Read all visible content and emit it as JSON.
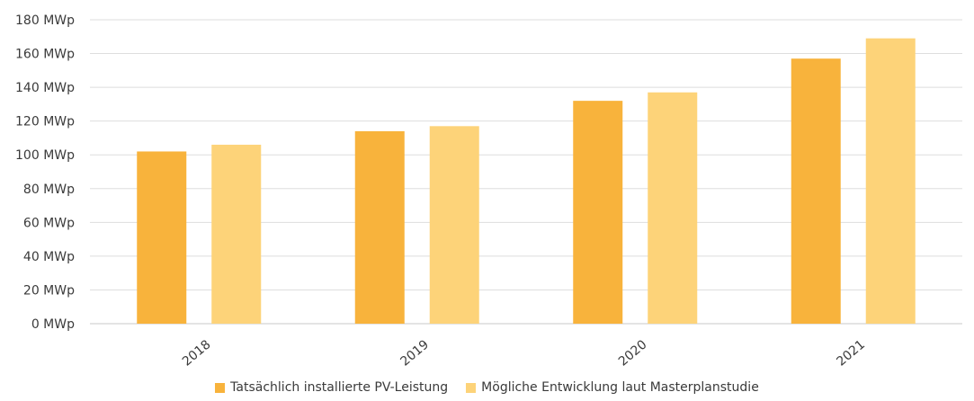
{
  "chart_data": {
    "type": "bar",
    "categories": [
      "2018",
      "2019",
      "2020",
      "2021"
    ],
    "series": [
      {
        "name": "Tatsächlich installierte PV-Leistung",
        "values": [
          102,
          114,
          132,
          157
        ],
        "color": "#F8B33C"
      },
      {
        "name": "Mögliche Entwicklung laut Masterplanstudie",
        "values": [
          106,
          117,
          137,
          169
        ],
        "color": "#FDD379"
      }
    ],
    "y_ticks": [
      "0 MWp",
      "20 MWp",
      "40 MWp",
      "60 MWp",
      "80 MWp",
      "100 MWp",
      "120 MWp",
      "140 MWp",
      "160 MWp",
      "180 MWp"
    ],
    "ylim": [
      0,
      180
    ],
    "grid": true,
    "legend_position": "bottom",
    "title": "",
    "xlabel": "",
    "ylabel": ""
  }
}
